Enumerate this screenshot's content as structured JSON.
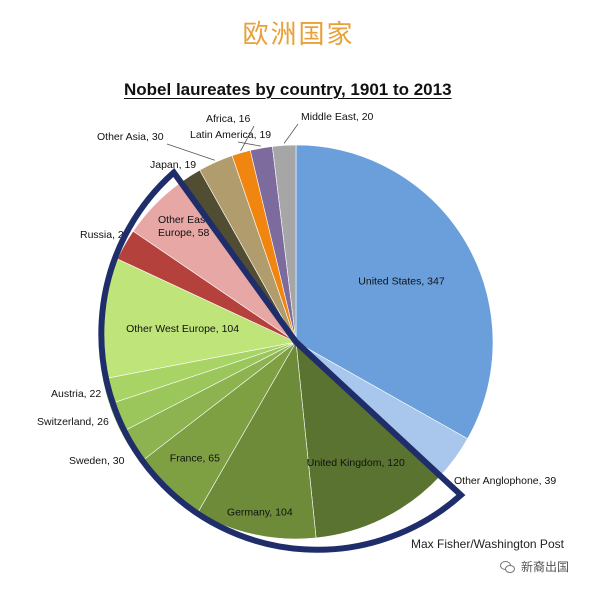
{
  "page": {
    "header_text": "欧洲国家",
    "credit": "Max Fisher/Washington Post",
    "watermark_text": "新裔出国",
    "watermark_icon": "wechat-icon"
  },
  "colors": {
    "header": "#e8a13a",
    "highlight_outline": "#1f2e6b"
  },
  "chart_data": {
    "type": "pie",
    "title": "Nobel laureates by country, 1901 to 2013",
    "start": "12 o'clock",
    "direction": "clockwise",
    "highlighted_group": [
      "United Kingdom",
      "Germany",
      "France",
      "Sweden",
      "Switzerland",
      "Austria",
      "Other West Europe",
      "Russia",
      "Other East Europe"
    ],
    "slices": [
      {
        "label": "United States, 347",
        "name": "United States",
        "value": 347,
        "color": "#6a9fdb"
      },
      {
        "label": "Other Anglophone, 39",
        "name": "Other Anglophone",
        "value": 39,
        "color": "#a9c7ec"
      },
      {
        "label": "United Kingdom, 120",
        "name": "United Kingdom",
        "value": 120,
        "color": "#5b7330"
      },
      {
        "label": "Germany, 104",
        "name": "Germany",
        "value": 104,
        "color": "#6d8b38"
      },
      {
        "label": "France, 65",
        "name": "France",
        "value": 65,
        "color": "#7ea043"
      },
      {
        "label": "Sweden, 30",
        "name": "Sweden",
        "value": 30,
        "color": "#8cb34f"
      },
      {
        "label": "Switzerland, 26",
        "name": "Switzerland",
        "value": 26,
        "color": "#9bc65b"
      },
      {
        "label": "Austria, 22",
        "name": "Austria",
        "value": 22,
        "color": "#a8d466"
      },
      {
        "label": "Other West Europe, 104",
        "name": "Other West Europe",
        "value": 104,
        "color": "#bfe47a"
      },
      {
        "label": "Russia, 27",
        "name": "Russia",
        "value": 27,
        "color": "#b5413d"
      },
      {
        "label": "Other East Europe, 58",
        "name": "Other East Europe",
        "value": 58,
        "color": "#e6a7a5"
      },
      {
        "label": "Japan, 19",
        "name": "Japan",
        "value": 19,
        "color": "#514d32"
      },
      {
        "label": "Other Asia, 30",
        "name": "Other Asia",
        "value": 30,
        "color": "#b09c6d"
      },
      {
        "label": "Africa, 16",
        "name": "Africa",
        "value": 16,
        "color": "#f0860f"
      },
      {
        "label": "Latin America, 19",
        "name": "Latin America",
        "value": 19,
        "color": "#7e6b9e"
      },
      {
        "label": "Middle East, 20",
        "name": "Middle East",
        "value": 20,
        "color": "#a6a6a6"
      }
    ]
  }
}
